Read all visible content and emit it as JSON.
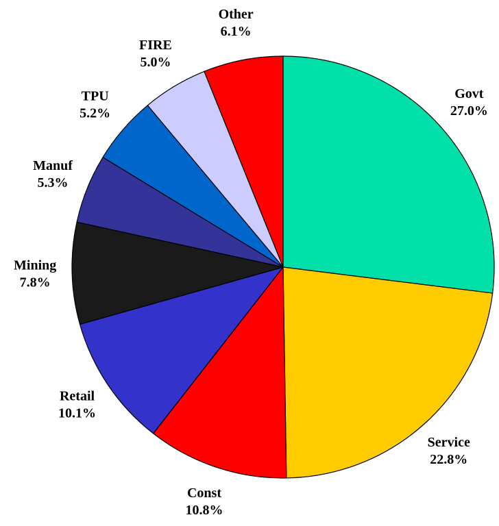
{
  "chart_data": {
    "type": "pie",
    "categories": [
      "Govt",
      "Service",
      "Const",
      "Retail",
      "Mining",
      "Manuf",
      "TPU",
      "FIRE",
      "Other"
    ],
    "values": [
      27.0,
      22.8,
      10.8,
      10.1,
      7.8,
      5.3,
      5.2,
      5.0,
      6.1
    ],
    "value_labels": [
      "27.0%",
      "22.8%",
      "10.8%",
      "10.1%",
      "7.8%",
      "5.3%",
      "5.2%",
      "5.0%",
      "6.1%"
    ],
    "colors": [
      "#00e0a8",
      "#ffcc00",
      "#ff0000",
      "#3333cc",
      "#1a1a1a",
      "#333399",
      "#0066cc",
      "#ccccff",
      "#ff0000"
    ]
  }
}
